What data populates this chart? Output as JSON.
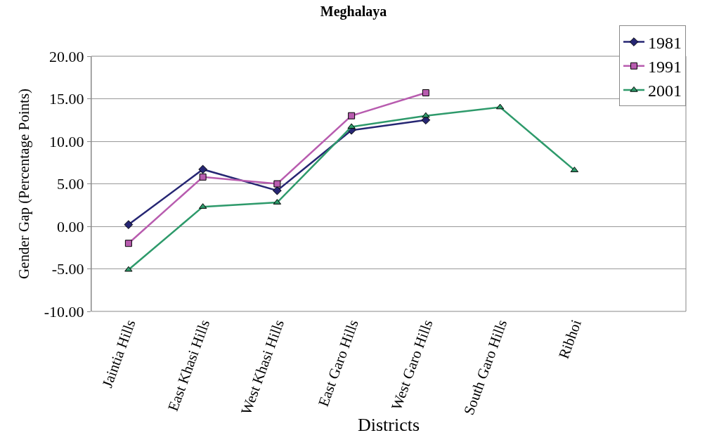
{
  "chart_data": {
    "type": "line",
    "title": "Meghalaya",
    "xlabel": "Districts",
    "ylabel": "Gender Gap (Percentage Points)",
    "categories": [
      "Jaintia Hills",
      "East Khasi Hills",
      "West Khasi Hills",
      "East Garo Hills",
      "West Garo Hills",
      "South Garo Hills",
      "Ribhoi"
    ],
    "series": [
      {
        "name": "1981",
        "color": "#262673",
        "marker": "diamond",
        "values": [
          0.2,
          6.7,
          4.2,
          11.3,
          12.5,
          null,
          null
        ]
      },
      {
        "name": "1991",
        "color": "#b85caf",
        "marker": "square",
        "values": [
          -2.0,
          5.8,
          5.0,
          13.0,
          15.7,
          null,
          null
        ]
      },
      {
        "name": "2001",
        "color": "#2e9a6b",
        "marker": "triangle",
        "values": [
          -5.1,
          2.3,
          2.8,
          11.7,
          13.0,
          14.0,
          6.6
        ]
      }
    ],
    "ylim": [
      -10,
      20
    ],
    "yticks": [
      {
        "value": -10,
        "label": "-10.00"
      },
      {
        "value": -5,
        "label": "-5.00"
      },
      {
        "value": 0,
        "label": "0.00"
      },
      {
        "value": 5,
        "label": "5.00"
      },
      {
        "value": 10,
        "label": "10.00"
      },
      {
        "value": 15,
        "label": "15.00"
      },
      {
        "value": 20,
        "label": "20.00"
      }
    ],
    "grid": "y",
    "legend": "top right",
    "line_style": "solid"
  }
}
